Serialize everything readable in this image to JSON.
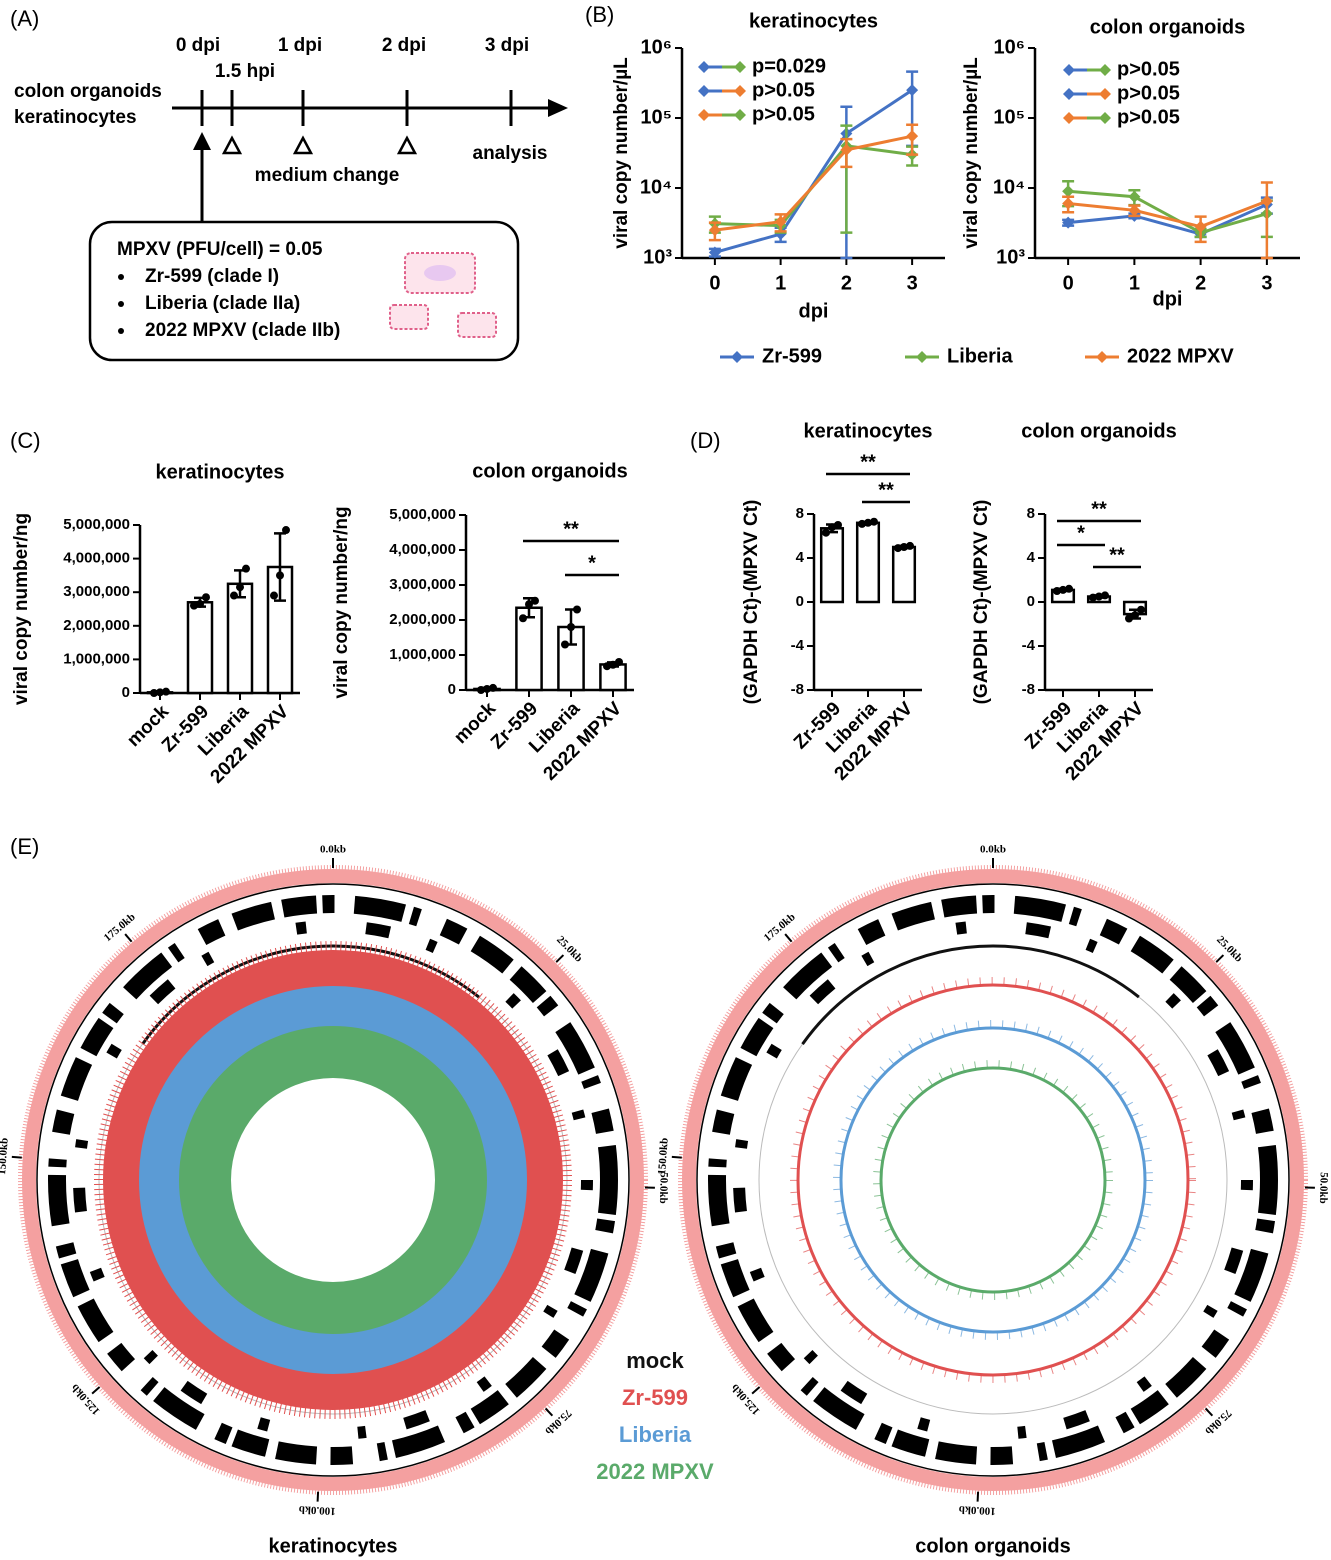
{
  "panel_labels": [
    "(A)",
    "(B)",
    "(C)",
    "(D)",
    "(E)"
  ],
  "timeline": {
    "cell_types": [
      "colon organoids",
      "keratinocytes"
    ],
    "time_points": [
      "0 dpi",
      "1 dpi",
      "2 dpi",
      "3 dpi"
    ],
    "infection_time": "1.5 hpi",
    "medium_change": "medium change",
    "analysis": "analysis",
    "inoculum": {
      "title": "MPXV (PFU/cell) = 0.05",
      "strains": [
        "Zr-599 (clade I)",
        "Liberia (clade IIa)",
        "2022 MPXV (clade IIb)"
      ]
    }
  },
  "chart_data": [
    {
      "type": "line",
      "title": "keratinocytes",
      "x_label": "dpi",
      "y_label": "viral copy number/µL",
      "x": [
        0,
        1,
        2,
        3
      ],
      "xlim": [
        -0.5,
        3.5
      ],
      "xticks": [
        0,
        1,
        2,
        3
      ],
      "ylim": [
        1000,
        1000000
      ],
      "log_scale": true,
      "yticks": [
        {
          "value": 1000,
          "label": "10³"
        },
        {
          "value": 10000,
          "label": "10⁴"
        },
        {
          "value": 100000,
          "label": "10⁵"
        },
        {
          "value": 1000000,
          "label": "10⁶"
        }
      ],
      "series": [
        {
          "name": "Zr-599",
          "color": "#4472c4",
          "values": [
            1200,
            2200,
            60000,
            250000
          ],
          "errors": [
            150,
            500,
            85000,
            210000
          ]
        },
        {
          "name": "Liberia",
          "color": "#70ad47",
          "values": [
            3100,
            2900,
            40000,
            30000
          ],
          "errors": [
            800,
            600,
            37700,
            9000
          ]
        },
        {
          "name": "2022 MPXV",
          "color": "#ed7d31",
          "values": [
            2500,
            3300,
            35000,
            55000
          ],
          "errors": [
            700,
            900,
            15000,
            25000
          ]
        }
      ],
      "comparisons": [
        {
          "colors": [
            "#4472c4",
            "#70ad47"
          ],
          "label": "p=0.029"
        },
        {
          "colors": [
            "#4472c4",
            "#ed7d31"
          ],
          "label": "p>0.05"
        },
        {
          "colors": [
            "#ed7d31",
            "#70ad47"
          ],
          "label": "p>0.05"
        }
      ]
    },
    {
      "type": "line",
      "title": "colon organoids",
      "x_label": "dpi",
      "y_label": "viral copy number/µL",
      "x": [
        0,
        1,
        2,
        3
      ],
      "xlim": [
        -0.5,
        3.5
      ],
      "xticks": [
        0,
        1,
        2,
        3
      ],
      "ylim": [
        1000,
        1000000
      ],
      "log_scale": true,
      "yticks": [
        {
          "value": 1000,
          "label": "10³"
        },
        {
          "value": 10000,
          "label": "10⁴"
        },
        {
          "value": 100000,
          "label": "10⁵"
        },
        {
          "value": 1000000,
          "label": "10⁶"
        }
      ],
      "series": [
        {
          "color": "#4472c4",
          "values": [
            3200,
            4000,
            2200,
            5800
          ],
          "errors": [
            300,
            300,
            200,
            1500
          ]
        },
        {
          "color": "#70ad47",
          "values": [
            9000,
            7500,
            2300,
            4300
          ],
          "errors": [
            3500,
            1800,
            300,
            2300
          ]
        },
        {
          "color": "#ed7d31",
          "values": [
            6000,
            4800,
            2800,
            6500
          ],
          "errors": [
            1500,
            800,
            1100,
            5500
          ]
        }
      ],
      "comparisons": [
        {
          "colors": [
            "#4472c4",
            "#70ad47"
          ],
          "label": "p>0.05"
        },
        {
          "colors": [
            "#4472c4",
            "#ed7d31"
          ],
          "label": "p>0.05"
        },
        {
          "colors": [
            "#ed7d31",
            "#70ad47"
          ],
          "label": "p>0.05"
        }
      ]
    },
    {
      "type": "bar",
      "title": "keratinocytes",
      "y_label": "viral copy number/ng",
      "categories": [
        "mock",
        "Zr-599",
        "Liberia",
        "2022 MPXV"
      ],
      "values": [
        20000,
        2700000,
        3250000,
        3750000
      ],
      "errors": [
        20000,
        130000,
        400000,
        1000000
      ],
      "points": [
        [
          0,
          20000,
          40000
        ],
        [
          2600000,
          2650000,
          2850000
        ],
        [
          2900000,
          3150000,
          3700000
        ],
        [
          2900000,
          3500000,
          4850000
        ]
      ],
      "ylim": [
        0,
        5000000
      ],
      "yticks": [
        0,
        {
          "value": 1000000,
          "label": "1,000,000"
        },
        {
          "value": 2000000,
          "label": "2,000,000"
        },
        {
          "value": 3000000,
          "label": "3,000,000"
        },
        {
          "value": 4000000,
          "label": "4,000,000"
        },
        {
          "value": 5000000,
          "label": "5,000,000"
        }
      ],
      "significance": []
    },
    {
      "type": "bar",
      "title": "colon organoids",
      "y_label": "viral copy number/ng",
      "categories": [
        "mock",
        "Zr-599",
        "Liberia",
        "2022 MPXV"
      ],
      "values": [
        30000,
        2350000,
        1800000,
        730000
      ],
      "errors": [
        30000,
        270000,
        500000,
        60000
      ],
      "points": [
        [
          0,
          30000,
          60000
        ],
        [
          2050000,
          2450000,
          2550000
        ],
        [
          1300000,
          1800000,
          2300000
        ],
        [
          680000,
          720000,
          800000
        ]
      ],
      "ylim": [
        0,
        5000000
      ],
      "yticks": [
        0,
        {
          "value": 1000000,
          "label": "1,000,000"
        },
        {
          "value": 2000000,
          "label": "2,000,000"
        },
        {
          "value": 3000000,
          "label": "3,000,000"
        },
        {
          "value": 4000000,
          "label": "4,000,000"
        },
        {
          "value": 5000000,
          "label": "5,000,000"
        }
      ],
      "significance": [
        {
          "from": 1,
          "to": 3,
          "label": "**"
        },
        {
          "from": 2,
          "to": 3,
          "label": "*"
        }
      ]
    },
    {
      "type": "bar",
      "title": "keratinocytes",
      "y_label": "(GAPDH Ct)-(MPXV Ct)",
      "categories": [
        "Zr-599",
        "Liberia",
        "2022 MPXV"
      ],
      "values": [
        6.7,
        7.2,
        5.0
      ],
      "errors": [
        0.35,
        0.1,
        0.1
      ],
      "points": [
        [
          6.3,
          6.8,
          7.0
        ],
        [
          7.1,
          7.2,
          7.3
        ],
        [
          4.9,
          5.0,
          5.1
        ]
      ],
      "ylim": [
        -8,
        8
      ],
      "yticks": [
        -8,
        -4,
        0,
        4,
        8
      ],
      "significance": [
        {
          "from": 0,
          "to": 2,
          "label": "**"
        },
        {
          "from": 1,
          "to": 2,
          "label": "**"
        }
      ]
    },
    {
      "type": "bar",
      "title": "colon organoids",
      "y_label": "(GAPDH Ct)-(MPXV Ct)",
      "categories": [
        "Zr-599",
        "Liberia",
        "2022 MPXV"
      ],
      "values": [
        1.1,
        0.5,
        -1.1
      ],
      "errors": [
        0.1,
        0.1,
        0.4
      ],
      "points": [
        [
          1.0,
          1.1,
          1.2
        ],
        [
          0.4,
          0.5,
          0.6
        ],
        [
          -1.5,
          -1.2,
          -0.7
        ]
      ],
      "ylim": [
        -8,
        8
      ],
      "yticks": [
        -8,
        -4,
        0,
        4,
        8
      ],
      "significance": [
        {
          "from": 0,
          "to": 2,
          "label": "**"
        },
        {
          "from": 0,
          "to": 1,
          "label": "*"
        },
        {
          "from": 1,
          "to": 2,
          "label": "**"
        }
      ]
    }
  ],
  "circos": {
    "titles": [
      "keratinocytes",
      "colon organoids"
    ],
    "xlim": [
      0,
      197
    ],
    "ticks": [
      {
        "value": 0,
        "label": "0.0kb"
      },
      {
        "value": 25,
        "label": "25.0kb"
      },
      {
        "value": 50,
        "label": "50.0kb"
      },
      {
        "value": 75,
        "label": "75.0kb"
      },
      {
        "value": 100,
        "label": "100.0kb"
      },
      {
        "value": 125,
        "label": "125.0kb"
      },
      {
        "value": 150,
        "label": "150.0kb"
      },
      {
        "value": 175,
        "label": "175.0kb"
      }
    ],
    "legend": [
      {
        "name": "mock",
        "color": "#111111"
      },
      {
        "name": "Zr-599",
        "color": "#e05050"
      },
      {
        "name": "Liberia",
        "color": "#5b9bd5"
      },
      {
        "name": "2022 MPXV",
        "color": "#5aaa6a"
      }
    ]
  }
}
